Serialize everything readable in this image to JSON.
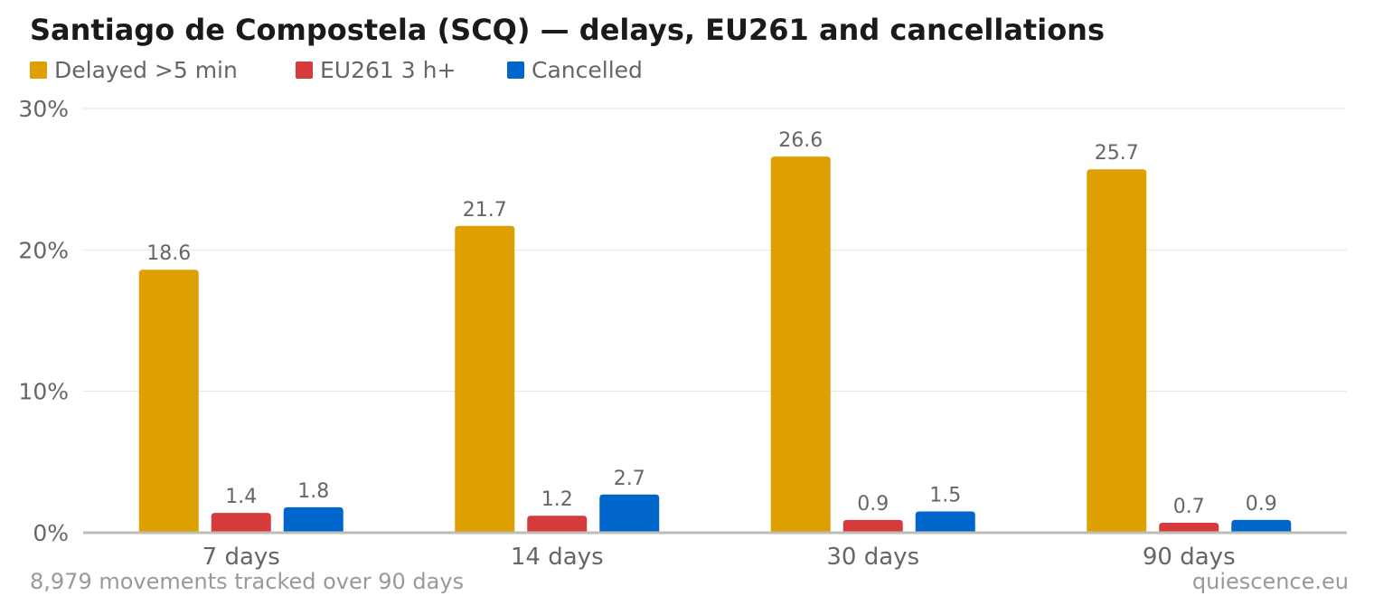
{
  "chart_data": {
    "type": "bar",
    "title": "Santiago de Compostela (SCQ) — delays, EU261 and cancellations",
    "categories": [
      "7 days",
      "14 days",
      "30 days",
      "90 days"
    ],
    "series": [
      {
        "name": "Delayed >5 min",
        "color": "#dea000",
        "values": [
          18.6,
          21.7,
          26.6,
          25.7
        ],
        "labels": [
          "18.6",
          "21.7",
          "26.6",
          "25.7"
        ]
      },
      {
        "name": "EU261 3 h+",
        "color": "#d63a3a",
        "values": [
          1.4,
          1.2,
          0.9,
          0.7
        ],
        "labels": [
          "1.4",
          "1.2",
          "0.9",
          "0.7"
        ]
      },
      {
        "name": "Cancelled",
        "color": "#0066cc",
        "values": [
          1.8,
          2.7,
          1.5,
          0.9
        ],
        "labels": [
          "1.8",
          "2.7",
          "1.5",
          "0.9"
        ]
      }
    ],
    "ylim": [
      0,
      30
    ],
    "y_ticks": [
      {
        "value": 0,
        "label": "0%"
      },
      {
        "value": 10,
        "label": "10%"
      },
      {
        "value": 20,
        "label": "20%"
      },
      {
        "value": 30,
        "label": "30%"
      }
    ],
    "grid": true,
    "legend_position": "top-left"
  },
  "footer": {
    "note": "8,979 movements tracked over 90 days",
    "source": "quiescence.eu"
  }
}
